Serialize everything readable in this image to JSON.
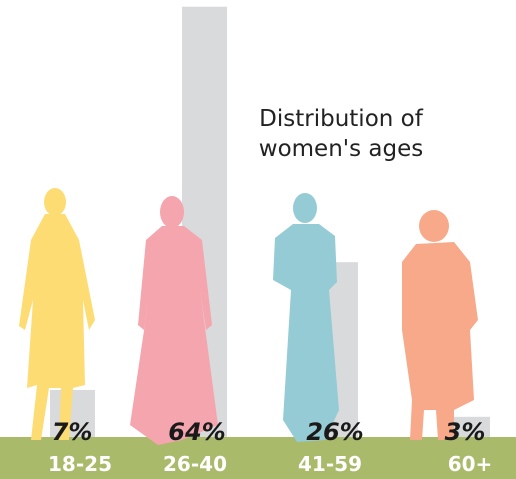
{
  "chart_data": {
    "type": "bar",
    "title": "Distribution of women's ages",
    "categories": [
      "18-25",
      "26-40",
      "41-59",
      "60+"
    ],
    "values": [
      7,
      64,
      26,
      3
    ],
    "value_labels": [
      "7%",
      "64%",
      "26%",
      "3%"
    ],
    "color": "#d9dadb",
    "ylim": [
      0,
      65
    ]
  }
}
